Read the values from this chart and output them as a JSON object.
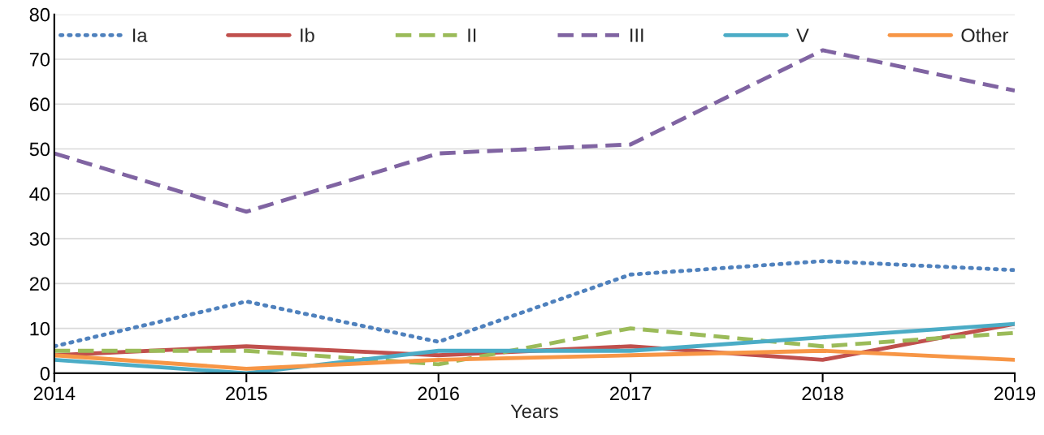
{
  "chart_data": {
    "type": "line",
    "xlabel": "Years",
    "x": [
      2014,
      2015,
      2016,
      2017,
      2018,
      2019
    ],
    "xlim": [
      2014,
      2019
    ],
    "xticks": [
      2014,
      2015,
      2016,
      2017,
      2018,
      2019
    ],
    "ylim": [
      0,
      80
    ],
    "yticks": [
      0,
      10,
      20,
      30,
      40,
      50,
      60,
      70,
      80
    ],
    "grid": "y",
    "legend": "top",
    "series": [
      {
        "name": "Ia",
        "color": "#4f81bd",
        "line_style": "dotted",
        "values": [
          6,
          16,
          7,
          22,
          25,
          23
        ]
      },
      {
        "name": "Ib",
        "color": "#c0504d",
        "line_style": "solid",
        "values": [
          4,
          6,
          4,
          6,
          3,
          11
        ]
      },
      {
        "name": "II",
        "color": "#9bbb59",
        "line_style": "dashed",
        "values": [
          5,
          5,
          2,
          10,
          6,
          9
        ]
      },
      {
        "name": "III",
        "color": "#8064a2",
        "line_style": "dashed",
        "values": [
          49,
          36,
          49,
          51,
          72,
          63
        ]
      },
      {
        "name": "V",
        "color": "#4bacc6",
        "line_style": "solid",
        "values": [
          3,
          0,
          5,
          5,
          8,
          11
        ]
      },
      {
        "name": "Other",
        "color": "#f79646",
        "line_style": "solid",
        "values": [
          4,
          1,
          3,
          4,
          5,
          3
        ]
      }
    ]
  }
}
